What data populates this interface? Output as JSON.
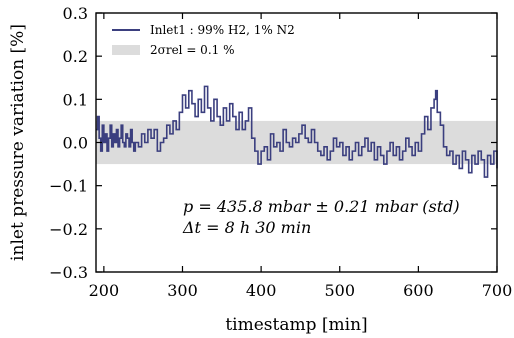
{
  "chart_data": {
    "type": "line",
    "xlabel": "timestamp [min]",
    "ylabel": "inlet pressure variation [%]",
    "xlim": [
      190,
      700
    ],
    "ylim": [
      -0.3,
      0.3
    ],
    "x_ticks": [
      200,
      300,
      400,
      500,
      600,
      700
    ],
    "y_ticks": [
      -0.3,
      -0.2,
      -0.1,
      0.0,
      0.1,
      0.2,
      0.3
    ],
    "x_tick_labels": [
      "200",
      "300",
      "400",
      "500",
      "600",
      "700"
    ],
    "y_tick_labels": [
      "−0.3",
      "−0.2",
      "−0.1",
      "0.0",
      "0.1",
      "0.2",
      "0.3"
    ],
    "band": {
      "label": "2σrel = 0.1 %",
      "y_range": [
        -0.05,
        0.05
      ],
      "color": "#dcdcdc"
    },
    "series": [
      {
        "name": "Inlet1 : 99% H2, 1% N2",
        "color": "#3b3f7f",
        "x": [
          190,
          192,
          194,
          196,
          198,
          200,
          202,
          204,
          206,
          208,
          210,
          212,
          214,
          216,
          218,
          220,
          222,
          224,
          226,
          228,
          230,
          232,
          234,
          236,
          238,
          240,
          244,
          248,
          252,
          256,
          260,
          264,
          268,
          272,
          276,
          280,
          284,
          288,
          292,
          296,
          300,
          304,
          308,
          312,
          316,
          320,
          324,
          328,
          332,
          336,
          340,
          344,
          348,
          352,
          356,
          360,
          364,
          368,
          372,
          376,
          380,
          384,
          388,
          392,
          396,
          400,
          404,
          408,
          412,
          416,
          420,
          424,
          428,
          432,
          436,
          440,
          444,
          448,
          452,
          456,
          460,
          464,
          468,
          472,
          476,
          480,
          484,
          488,
          492,
          496,
          500,
          504,
          508,
          512,
          516,
          520,
          524,
          528,
          532,
          536,
          540,
          544,
          548,
          552,
          556,
          560,
          564,
          568,
          572,
          576,
          580,
          584,
          588,
          592,
          596,
          600,
          604,
          608,
          612,
          616,
          620,
          622,
          624,
          628,
          632,
          636,
          640,
          644,
          648,
          652,
          656,
          660,
          664,
          668,
          672,
          676,
          680,
          684,
          688,
          692,
          696,
          700
        ],
        "values": [
          0.03,
          0.06,
          0.01,
          -0.02,
          0.04,
          0.0,
          0.02,
          -0.02,
          0.01,
          0.04,
          -0.01,
          0.02,
          0.0,
          0.03,
          -0.01,
          0.01,
          0.04,
          0.0,
          -0.01,
          0.02,
          0.01,
          -0.01,
          0.03,
          0.0,
          -0.02,
          0.0,
          -0.01,
          0.02,
          0.0,
          0.03,
          0.01,
          0.03,
          -0.02,
          0.0,
          0.01,
          0.04,
          0.02,
          0.05,
          0.03,
          0.07,
          0.11,
          0.08,
          0.12,
          0.09,
          0.06,
          0.1,
          0.07,
          0.13,
          0.08,
          0.05,
          0.1,
          0.06,
          0.04,
          0.08,
          0.05,
          0.09,
          0.06,
          0.03,
          0.07,
          0.03,
          0.05,
          0.08,
          0.01,
          -0.02,
          -0.05,
          -0.02,
          -0.01,
          -0.04,
          0.02,
          -0.01,
          0.0,
          -0.02,
          0.03,
          0.0,
          -0.01,
          0.01,
          0.0,
          0.02,
          0.04,
          0.01,
          0.0,
          0.03,
          0.0,
          -0.02,
          -0.03,
          -0.01,
          -0.04,
          -0.02,
          0.01,
          -0.01,
          0.0,
          -0.03,
          -0.01,
          -0.04,
          -0.02,
          0.0,
          -0.03,
          -0.01,
          0.01,
          -0.02,
          0.0,
          -0.04,
          -0.01,
          -0.03,
          -0.05,
          -0.02,
          0.0,
          -0.03,
          -0.01,
          -0.04,
          -0.02,
          0.01,
          -0.01,
          -0.03,
          0.0,
          -0.02,
          0.02,
          0.06,
          0.03,
          0.08,
          0.1,
          0.12,
          0.07,
          0.04,
          -0.01,
          -0.03,
          -0.02,
          -0.05,
          -0.03,
          -0.06,
          -0.02,
          -0.04,
          -0.07,
          -0.03,
          -0.05,
          -0.02,
          -0.04,
          -0.08,
          -0.03,
          -0.05,
          -0.02,
          -0.06
        ]
      }
    ],
    "legend": {
      "position": "top-left",
      "entries": [
        {
          "label": "Inlet1 : 99% H2, 1% N2"
        },
        {
          "label": "2σrel = 0.1 %"
        }
      ]
    },
    "annotations": [
      "p = 435.8 mbar ± 0.21 mbar (std)",
      "Δt = 8 h 30 min"
    ]
  }
}
